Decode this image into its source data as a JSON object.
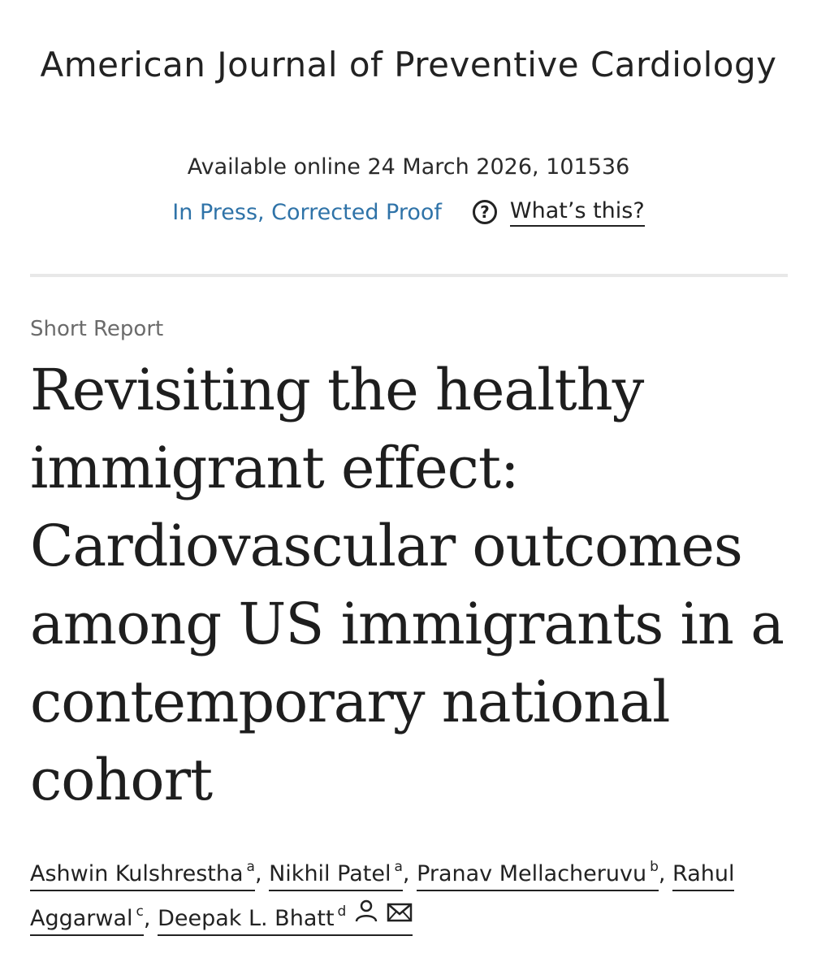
{
  "journal": {
    "title": "American Journal of Preventive Cardiology"
  },
  "availability": "Available online 24 March 2026, 101536",
  "status": {
    "label": "In Press, Corrected Proof",
    "help_label": "What’s this?",
    "help_icon": "question-circle-icon"
  },
  "article": {
    "type": "Short Report",
    "title": "Revisiting the healthy immigrant effect: Cardiovascular outcomes among US immigrants in a contemporary national cohort"
  },
  "authors": [
    {
      "name": "Ashwin Kulshrestha",
      "affil": "a"
    },
    {
      "name": "Nikhil Patel",
      "affil": "a"
    },
    {
      "name": "Pranav Mellacheruvu",
      "affil": "b"
    },
    {
      "name": "Rahul Aggarwal",
      "affil": "c"
    },
    {
      "name": "Deepak L. Bhatt",
      "affil": "d"
    }
  ],
  "icons": {
    "corresponding_author": "person-icon",
    "email": "mail-icon"
  },
  "colors": {
    "link_blue": "#2f73a8",
    "text": "#222222",
    "muted": "#6b6b6b",
    "divider": "#e8e8e8"
  }
}
